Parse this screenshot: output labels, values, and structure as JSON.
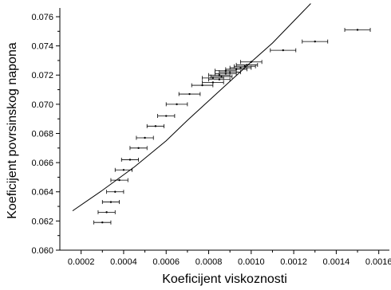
{
  "chart_data": {
    "type": "scatter",
    "title": "",
    "xlabel": "Koeficijent viskoznosti",
    "ylabel": "Koeficijent povrsinskog napona",
    "xlim": [
      0.0001,
      0.00165
    ],
    "ylim": [
      0.06,
      0.0766
    ],
    "xticks": [
      0.0002,
      0.0004,
      0.0006,
      0.0008,
      0.001,
      0.0012,
      0.0014,
      0.0016
    ],
    "xtick_labels": [
      "0.0002",
      "0.0004",
      "0.0006",
      "0.0008",
      "0.0010",
      "0.0012",
      "0.0014",
      "0.0016"
    ],
    "yticks": [
      0.06,
      0.062,
      0.064,
      0.066,
      0.068,
      0.07,
      0.072,
      0.074,
      0.076
    ],
    "ytick_labels": [
      "0.060",
      "0.062",
      "0.064",
      "0.066",
      "0.068",
      "0.070",
      "0.072",
      "0.074",
      "0.076"
    ],
    "grid": false,
    "legend": "none",
    "series": [
      {
        "type": "scatter_with_xerror",
        "color": "#000000",
        "points": [
          {
            "x": 0.0003,
            "y": 0.0619,
            "xerr": 4e-05
          },
          {
            "x": 0.00032,
            "y": 0.0626,
            "xerr": 4e-05
          },
          {
            "x": 0.00034,
            "y": 0.0633,
            "xerr": 4e-05
          },
          {
            "x": 0.00036,
            "y": 0.064,
            "xerr": 4e-05
          },
          {
            "x": 0.00038,
            "y": 0.0648,
            "xerr": 4e-05
          },
          {
            "x": 0.0004,
            "y": 0.0655,
            "xerr": 4e-05
          },
          {
            "x": 0.00043,
            "y": 0.0662,
            "xerr": 4e-05
          },
          {
            "x": 0.00047,
            "y": 0.067,
            "xerr": 4e-05
          },
          {
            "x": 0.0005,
            "y": 0.0677,
            "xerr": 4e-05
          },
          {
            "x": 0.00055,
            "y": 0.0685,
            "xerr": 4e-05
          },
          {
            "x": 0.0006,
            "y": 0.0692,
            "xerr": 4e-05
          },
          {
            "x": 0.00065,
            "y": 0.07,
            "xerr": 5e-05
          },
          {
            "x": 0.00071,
            "y": 0.0707,
            "xerr": 5e-05
          },
          {
            "x": 0.00077,
            "y": 0.0713,
            "xerr": 5e-05
          },
          {
            "x": 0.00082,
            "y": 0.0715,
            "xerr": 5e-05
          },
          {
            "x": 0.00085,
            "y": 0.0717,
            "xerr": 5e-05
          },
          {
            "x": 0.00082,
            "y": 0.0718,
            "xerr": 5e-05
          },
          {
            "x": 0.00086,
            "y": 0.0719,
            "xerr": 5e-05
          },
          {
            "x": 0.00085,
            "y": 0.072,
            "xerr": 5e-05
          },
          {
            "x": 0.00088,
            "y": 0.0721,
            "xerr": 5e-05
          },
          {
            "x": 0.0009,
            "y": 0.0722,
            "xerr": 5e-05
          },
          {
            "x": 0.00088,
            "y": 0.0723,
            "xerr": 5e-05
          },
          {
            "x": 0.00093,
            "y": 0.0724,
            "xerr": 5e-05
          },
          {
            "x": 0.00095,
            "y": 0.0725,
            "xerr": 5e-05
          },
          {
            "x": 0.00097,
            "y": 0.0726,
            "xerr": 5e-05
          },
          {
            "x": 0.00098,
            "y": 0.0727,
            "xerr": 5e-05
          },
          {
            "x": 0.001,
            "y": 0.0729,
            "xerr": 5e-05
          },
          {
            "x": 0.00115,
            "y": 0.0737,
            "xerr": 6e-05
          },
          {
            "x": 0.0013,
            "y": 0.0743,
            "xerr": 6e-05
          },
          {
            "x": 0.0015,
            "y": 0.0751,
            "xerr": 6e-05
          }
        ]
      },
      {
        "type": "line",
        "color": "#000000",
        "x": [
          0.00016,
          0.0003,
          0.00045,
          0.0006,
          0.0007,
          0.00085,
          0.001,
          0.0011,
          0.0012,
          0.00128
        ],
        "y": [
          0.0627,
          0.0641,
          0.0657,
          0.0675,
          0.0689,
          0.0709,
          0.0729,
          0.0742,
          0.0757,
          0.0769
        ]
      }
    ]
  }
}
